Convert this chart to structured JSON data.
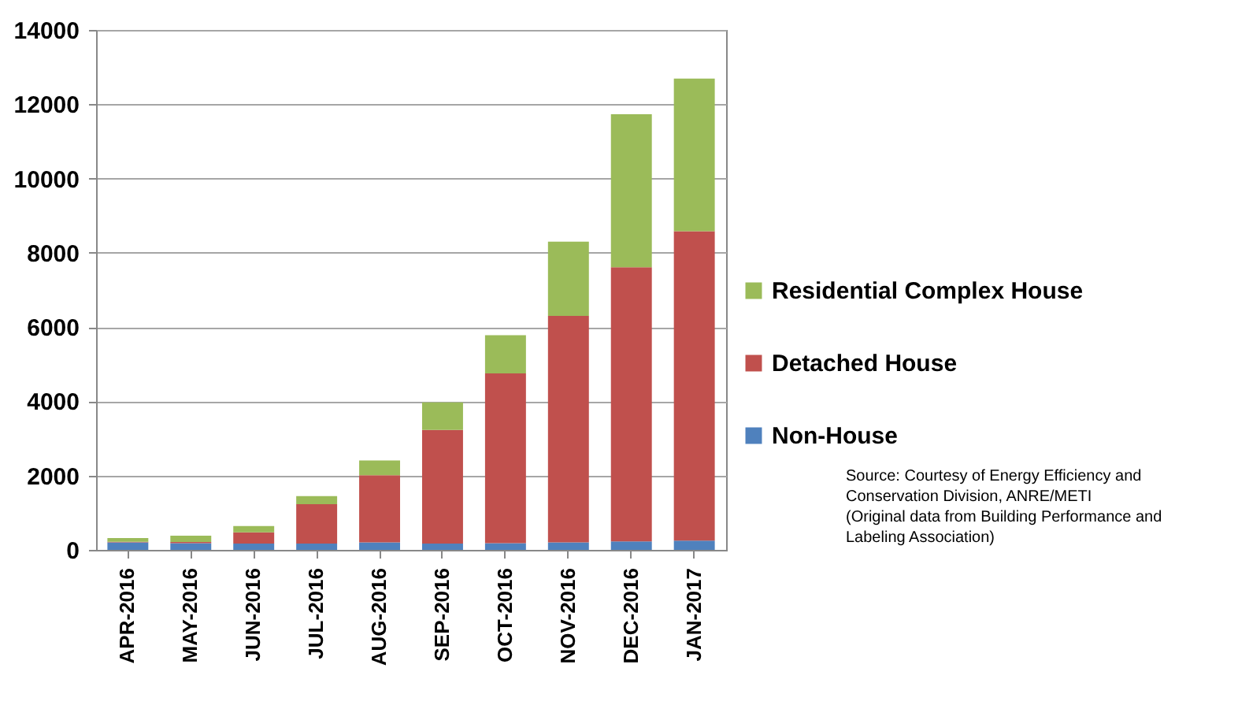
{
  "chart_data": {
    "type": "bar",
    "stacked": true,
    "categories": [
      "APR-2016",
      "MAY-2016",
      "JUN-2016",
      "JUL-2016",
      "AUG-2016",
      "SEP-2016",
      "OCT-2016",
      "NOV-2016",
      "DEC-2016",
      "JAN-2017"
    ],
    "series": [
      {
        "name": "Non-House",
        "color": "#4f81bd",
        "values": [
          200,
          180,
          170,
          170,
          200,
          170,
          180,
          200,
          230,
          250
        ]
      },
      {
        "name": "Detached House",
        "color": "#c0504d",
        "values": [
          20,
          30,
          300,
          1060,
          1810,
          3060,
          4570,
          6100,
          7380,
          8330
        ]
      },
      {
        "name": "Residential Complex House",
        "color": "#9bbb59",
        "values": [
          100,
          170,
          170,
          220,
          400,
          740,
          1030,
          2000,
          4120,
          4110
        ]
      }
    ],
    "ylim": [
      0,
      14000
    ],
    "yticks": [
      0,
      2000,
      4000,
      6000,
      8000,
      10000,
      12000,
      14000
    ],
    "grid": "y",
    "legend": "right",
    "annotations": [
      "Source: Courtesy of Energy Efficiency and Conservation Division, ANRE/METI",
      "(Original data from Building Performance and Labeling Association)"
    ]
  }
}
